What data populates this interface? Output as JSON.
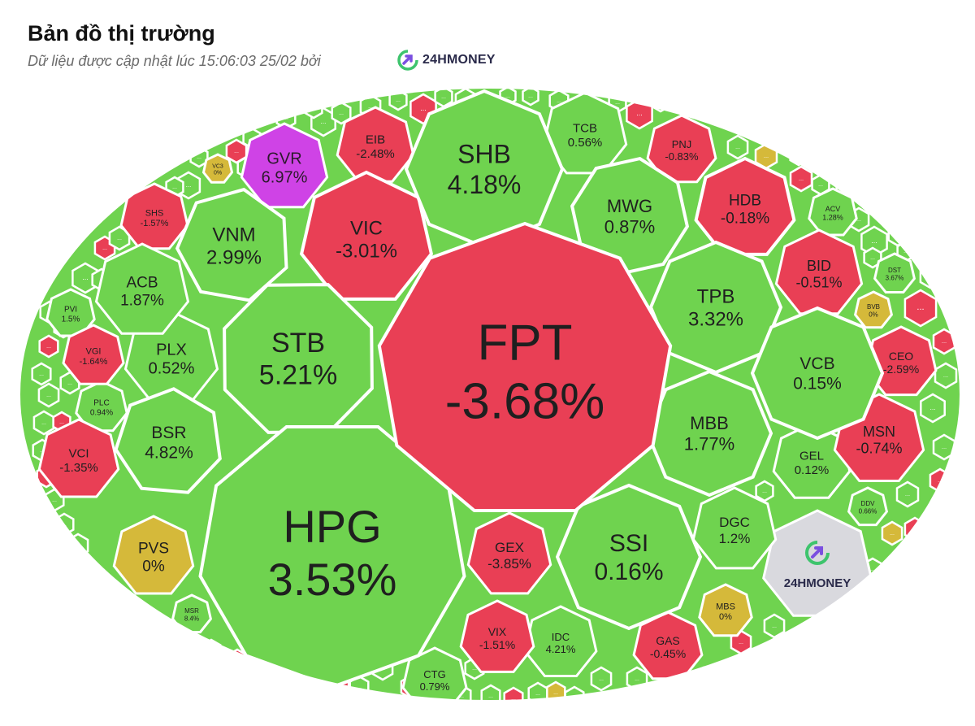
{
  "header": {
    "title": "Bản đồ thị trường",
    "subtitle": "Dữ liệu được cập nhật lúc 15:06:03 25/02 bởi",
    "brand": "24HMONEY"
  },
  "colors": {
    "up": "#6fd34f",
    "down": "#e93f55",
    "flat": "#d5b93a",
    "ceiling": "#cf43e6",
    "watermark": "#d9d9de",
    "border": "#ffffff"
  },
  "more_label": "...",
  "watermark_text": "24HMONEY",
  "stocks": [
    {
      "ticker": "FPT",
      "change": "-3.68%",
      "status": "down"
    },
    {
      "ticker": "HPG",
      "change": "3.53%",
      "status": "up"
    },
    {
      "ticker": "STB",
      "change": "5.21%",
      "status": "up"
    },
    {
      "ticker": "SHB",
      "change": "4.18%",
      "status": "up"
    },
    {
      "ticker": "SSI",
      "change": "0.16%",
      "status": "up"
    },
    {
      "ticker": "VIC",
      "change": "-3.01%",
      "status": "down"
    },
    {
      "ticker": "VNM",
      "change": "2.99%",
      "status": "up"
    },
    {
      "ticker": "GVR",
      "change": "6.97%",
      "status": "ceiling"
    },
    {
      "ticker": "TPB",
      "change": "3.32%",
      "status": "up"
    },
    {
      "ticker": "MWG",
      "change": "0.87%",
      "status": "up"
    },
    {
      "ticker": "MBB",
      "change": "1.77%",
      "status": "up"
    },
    {
      "ticker": "BSR",
      "change": "4.82%",
      "status": "up"
    },
    {
      "ticker": "PLX",
      "change": "0.52%",
      "status": "up"
    },
    {
      "ticker": "ACB",
      "change": "1.87%",
      "status": "up"
    },
    {
      "ticker": "VCB",
      "change": "0.15%",
      "status": "up"
    },
    {
      "ticker": "GEX",
      "change": "-3.85%",
      "status": "down"
    },
    {
      "ticker": "HDB",
      "change": "-0.18%",
      "status": "down"
    },
    {
      "ticker": "BID",
      "change": "-0.51%",
      "status": "down"
    },
    {
      "ticker": "EIB",
      "change": "-2.48%",
      "status": "down"
    },
    {
      "ticker": "TCB",
      "change": "0.56%",
      "status": "up"
    },
    {
      "ticker": "DGC",
      "change": "1.2%",
      "status": "up"
    },
    {
      "ticker": "MSN",
      "change": "-0.74%",
      "status": "down"
    },
    {
      "ticker": "GEL",
      "change": "0.12%",
      "status": "up"
    },
    {
      "ticker": "PVS",
      "change": "0%",
      "status": "flat"
    },
    {
      "ticker": "VCI",
      "change": "-1.35%",
      "status": "down"
    },
    {
      "ticker": "CEO",
      "change": "-2.59%",
      "status": "down"
    },
    {
      "ticker": "VIX",
      "change": "-1.51%",
      "status": "down"
    },
    {
      "ticker": "IDC",
      "change": "4.21%",
      "status": "up"
    },
    {
      "ticker": "GAS",
      "change": "-0.45%",
      "status": "down"
    },
    {
      "ticker": "CTG",
      "change": "0.79%",
      "status": "up"
    },
    {
      "ticker": "PNJ",
      "change": "-0.83%",
      "status": "down"
    },
    {
      "ticker": "MBS",
      "change": "0%",
      "status": "flat"
    },
    {
      "ticker": "SHS",
      "change": "-1.57%",
      "status": "down"
    },
    {
      "ticker": "VGI",
      "change": "-1.64%",
      "status": "down"
    },
    {
      "ticker": "PLC",
      "change": "0.94%",
      "status": "up"
    },
    {
      "ticker": "PVI",
      "change": "1.5%",
      "status": "up"
    },
    {
      "ticker": "ACV",
      "change": "1.28%",
      "status": "up"
    },
    {
      "ticker": "DST",
      "change": "3.67%",
      "status": "up"
    },
    {
      "ticker": "BVB",
      "change": "0%",
      "status": "flat"
    },
    {
      "ticker": "DDV",
      "change": "0.66%",
      "status": "up"
    },
    {
      "ticker": "MSR",
      "change": "8.4%",
      "status": "up"
    },
    {
      "ticker": "VC3",
      "change": "0%",
      "status": "flat"
    }
  ],
  "small_cells": [
    "up",
    "down",
    "up",
    "up",
    "down",
    "up",
    "flat",
    "up",
    "down",
    "up",
    "up",
    "down",
    "up",
    "down",
    "up",
    "up",
    "up",
    "down",
    "up",
    "flat",
    "down",
    "up",
    "up",
    "down",
    "up",
    "up",
    "down",
    "up",
    "up",
    "up",
    "down",
    "up",
    "up",
    "flat",
    "up",
    "down",
    "up",
    "up",
    "up",
    "down",
    "up",
    "up",
    "down",
    "up",
    "up",
    "up",
    "down",
    "up",
    "up",
    "up",
    "down",
    "up",
    "up",
    "up",
    "down",
    "up",
    "up",
    "up",
    "down",
    "up",
    "up",
    "down",
    "up",
    "up",
    "up",
    "down",
    "up",
    "up",
    "up",
    "down",
    "up",
    "up",
    "up",
    "up",
    "down",
    "up",
    "up",
    "up",
    "up",
    "up",
    "up",
    "up",
    "up",
    "up",
    "up",
    "up",
    "up",
    "up",
    "up",
    "up",
    "down",
    "up",
    "up",
    "up",
    "up",
    "up",
    "up"
  ]
}
